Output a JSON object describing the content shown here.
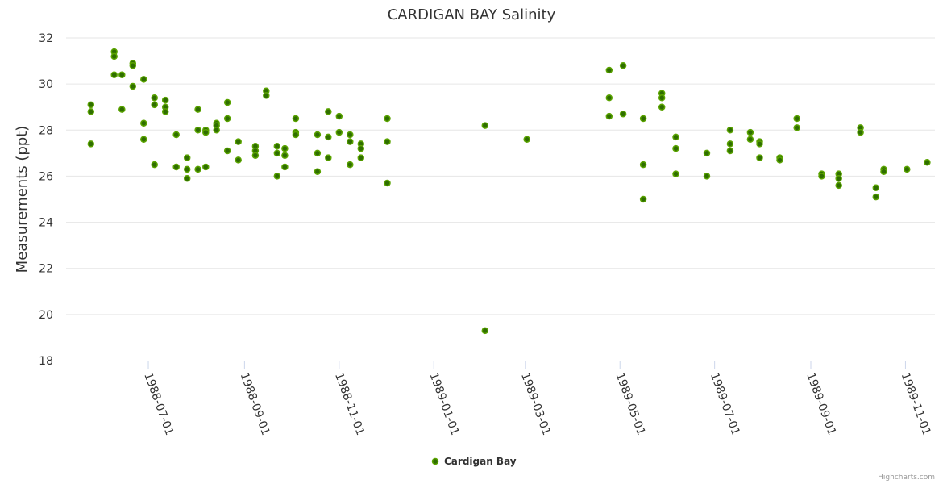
{
  "chart_data": {
    "type": "scatter",
    "title": "CARDIGAN BAY Salinity",
    "ylabel": "Measurements (ppt)",
    "xlabel": "",
    "ylim": [
      18,
      32
    ],
    "yticks": [
      18,
      20,
      22,
      24,
      26,
      28,
      30,
      32
    ],
    "xlim": [
      "1988-05-09",
      "1989-11-20"
    ],
    "xticks": [
      "1988-07-01",
      "1988-09-01",
      "1988-11-01",
      "1989-01-01",
      "1989-03-01",
      "1989-05-01",
      "1989-07-01",
      "1989-09-01",
      "1989-11-01"
    ],
    "grid": true,
    "legend_position": "bottom-center",
    "series": [
      {
        "name": "Cardigan Bay",
        "color": "#5aa300",
        "points": [
          [
            "1988-05-25",
            29.1
          ],
          [
            "1988-05-25",
            28.8
          ],
          [
            "1988-05-25",
            27.4
          ],
          [
            "1988-06-09",
            31.4
          ],
          [
            "1988-06-09",
            31.2
          ],
          [
            "1988-06-09",
            30.4
          ],
          [
            "1988-06-14",
            30.4
          ],
          [
            "1988-06-14",
            28.9
          ],
          [
            "1988-06-21",
            30.9
          ],
          [
            "1988-06-21",
            30.8
          ],
          [
            "1988-06-21",
            29.9
          ],
          [
            "1988-06-28",
            30.2
          ],
          [
            "1988-06-28",
            28.3
          ],
          [
            "1988-06-28",
            27.6
          ],
          [
            "1988-07-05",
            29.4
          ],
          [
            "1988-07-05",
            29.1
          ],
          [
            "1988-07-05",
            26.5
          ],
          [
            "1988-07-12",
            29.3
          ],
          [
            "1988-07-12",
            29.0
          ],
          [
            "1988-07-12",
            28.8
          ],
          [
            "1988-07-19",
            27.8
          ],
          [
            "1988-07-19",
            26.4
          ],
          [
            "1988-07-26",
            26.8
          ],
          [
            "1988-07-26",
            26.3
          ],
          [
            "1988-07-26",
            25.9
          ],
          [
            "1988-08-02",
            28.9
          ],
          [
            "1988-08-02",
            28.0
          ],
          [
            "1988-08-02",
            26.3
          ],
          [
            "1988-08-07",
            28.0
          ],
          [
            "1988-08-07",
            27.9
          ],
          [
            "1988-08-07",
            26.4
          ],
          [
            "1988-08-14",
            28.3
          ],
          [
            "1988-08-14",
            28.2
          ],
          [
            "1988-08-14",
            28.0
          ],
          [
            "1988-08-21",
            29.2
          ],
          [
            "1988-08-21",
            28.5
          ],
          [
            "1988-08-21",
            27.1
          ],
          [
            "1988-08-28",
            27.5
          ],
          [
            "1988-08-28",
            26.7
          ],
          [
            "1988-09-08",
            27.3
          ],
          [
            "1988-09-08",
            27.1
          ],
          [
            "1988-09-08",
            26.9
          ],
          [
            "1988-09-15",
            29.7
          ],
          [
            "1988-09-15",
            29.5
          ],
          [
            "1988-09-22",
            27.3
          ],
          [
            "1988-09-22",
            27.0
          ],
          [
            "1988-09-22",
            26.0
          ],
          [
            "1988-09-27",
            27.2
          ],
          [
            "1988-09-27",
            26.9
          ],
          [
            "1988-09-27",
            26.4
          ],
          [
            "1988-10-04",
            28.5
          ],
          [
            "1988-10-04",
            27.9
          ],
          [
            "1988-10-04",
            27.8
          ],
          [
            "1988-10-18",
            27.8
          ],
          [
            "1988-10-18",
            27.0
          ],
          [
            "1988-10-18",
            26.2
          ],
          [
            "1988-10-25",
            28.8
          ],
          [
            "1988-10-25",
            27.7
          ],
          [
            "1988-10-25",
            26.8
          ],
          [
            "1988-11-01",
            28.6
          ],
          [
            "1988-11-01",
            27.9
          ],
          [
            "1988-11-08",
            27.8
          ],
          [
            "1988-11-08",
            27.5
          ],
          [
            "1988-11-08",
            26.5
          ],
          [
            "1988-11-15",
            27.4
          ],
          [
            "1988-11-15",
            27.2
          ],
          [
            "1988-11-15",
            26.8
          ],
          [
            "1988-12-02",
            28.5
          ],
          [
            "1988-12-02",
            27.5
          ],
          [
            "1988-12-02",
            25.7
          ],
          [
            "1989-02-03",
            28.2
          ],
          [
            "1989-02-03",
            19.3
          ],
          [
            "1989-03-02",
            27.6
          ],
          [
            "1989-04-24",
            30.6
          ],
          [
            "1989-04-24",
            29.4
          ],
          [
            "1989-04-24",
            28.6
          ],
          [
            "1989-05-03",
            30.8
          ],
          [
            "1989-05-03",
            28.7
          ],
          [
            "1989-05-16",
            28.5
          ],
          [
            "1989-05-16",
            26.5
          ],
          [
            "1989-05-16",
            25.0
          ],
          [
            "1989-05-28",
            29.6
          ],
          [
            "1989-05-28",
            29.4
          ],
          [
            "1989-05-28",
            29.0
          ],
          [
            "1989-06-06",
            27.7
          ],
          [
            "1989-06-06",
            27.2
          ],
          [
            "1989-06-06",
            26.1
          ],
          [
            "1989-06-26",
            27.0
          ],
          [
            "1989-06-26",
            26.0
          ],
          [
            "1989-07-11",
            28.0
          ],
          [
            "1989-07-11",
            27.4
          ],
          [
            "1989-07-11",
            27.1
          ],
          [
            "1989-07-24",
            27.9
          ],
          [
            "1989-07-24",
            27.6
          ],
          [
            "1989-07-30",
            27.5
          ],
          [
            "1989-07-30",
            27.4
          ],
          [
            "1989-07-30",
            26.8
          ],
          [
            "1989-08-12",
            26.8
          ],
          [
            "1989-08-12",
            26.7
          ],
          [
            "1989-08-23",
            28.5
          ],
          [
            "1989-08-23",
            28.1
          ],
          [
            "1989-09-08",
            26.1
          ],
          [
            "1989-09-08",
            26.0
          ],
          [
            "1989-09-19",
            26.1
          ],
          [
            "1989-09-19",
            25.9
          ],
          [
            "1989-09-19",
            25.6
          ],
          [
            "1989-10-03",
            28.1
          ],
          [
            "1989-10-03",
            27.9
          ],
          [
            "1989-10-13",
            25.5
          ],
          [
            "1989-10-13",
            25.1
          ],
          [
            "1989-10-18",
            26.3
          ],
          [
            "1989-10-18",
            26.2
          ],
          [
            "1989-11-02",
            26.3
          ],
          [
            "1989-11-15",
            26.6
          ]
        ]
      }
    ]
  },
  "credits": "Highcharts.com"
}
